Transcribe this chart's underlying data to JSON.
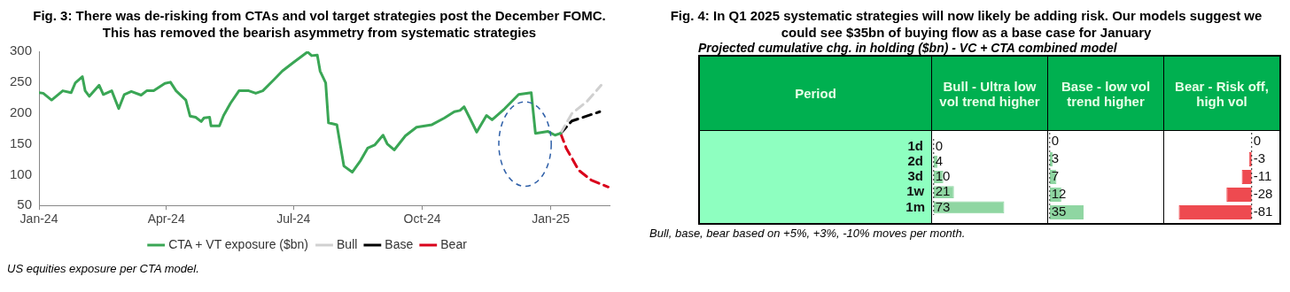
{
  "chart_data": [
    {
      "type": "line",
      "title": "Fig. 3: There was de-risking from CTAs and vol target strategies post the December FOMC. This has removed the bearish asymmetry from systematic strategies",
      "annotations": [
        "US equities exposure per CTA model."
      ],
      "xlim": [
        "2024-01-01",
        "2025-02-12"
      ],
      "xticks": [
        {
          "value": "2024-01-01",
          "label": "Jan-24"
        },
        {
          "value": "2024-04-01",
          "label": "Apr-24"
        },
        {
          "value": "2024-07-01",
          "label": "Jul-24"
        },
        {
          "value": "2024-10-01",
          "label": "Oct-24"
        },
        {
          "value": "2025-01-01",
          "label": "Jan-25"
        }
      ],
      "ylim": [
        50,
        300
      ],
      "yticks": [
        50,
        100,
        150,
        200,
        250,
        300
      ],
      "legend": "bottom",
      "series": [
        {
          "name": "CTA + VT exposure ($bn)",
          "color": "#3aa655",
          "line_style": "solid",
          "x": [
            "2024-01-01",
            "2024-01-04",
            "2024-01-10",
            "2024-01-18",
            "2024-01-24",
            "2024-01-27",
            "2024-02-01",
            "2024-02-03",
            "2024-02-06",
            "2024-02-13",
            "2024-02-16",
            "2024-02-22",
            "2024-02-27",
            "2024-03-02",
            "2024-03-07",
            "2024-03-14",
            "2024-03-18",
            "2024-03-23",
            "2024-03-31",
            "2024-04-04",
            "2024-04-08",
            "2024-04-15",
            "2024-04-18",
            "2024-04-22",
            "2024-04-26",
            "2024-04-28",
            "2024-05-02",
            "2024-05-03",
            "2024-05-09",
            "2024-05-12",
            "2024-05-17",
            "2024-05-23",
            "2024-05-30",
            "2024-06-04",
            "2024-06-09",
            "2024-06-17",
            "2024-06-23",
            "2024-07-01",
            "2024-07-11",
            "2024-07-14",
            "2024-07-18",
            "2024-07-20",
            "2024-07-24",
            "2024-07-26",
            "2024-08-01",
            "2024-08-06",
            "2024-08-12",
            "2024-08-18",
            "2024-08-23",
            "2024-08-28",
            "2024-09-03",
            "2024-09-06",
            "2024-09-11",
            "2024-09-19",
            "2024-09-27",
            "2024-10-08",
            "2024-10-17",
            "2024-10-24",
            "2024-10-28",
            "2024-10-31",
            "2024-11-04",
            "2024-11-09",
            "2024-11-16",
            "2024-11-20",
            "2024-11-29",
            "2024-12-09",
            "2024-12-18",
            "2024-12-21",
            "2024-12-30",
            "2025-01-04",
            "2025-01-08"
          ],
          "values": [
            233,
            232,
            221,
            236,
            233,
            249,
            259,
            236,
            227,
            245,
            230,
            236,
            207,
            230,
            235,
            229,
            236,
            236,
            248,
            250,
            236,
            221,
            195,
            193,
            186,
            192,
            193,
            179,
            179,
            196,
            216,
            236,
            236,
            232,
            236,
            254,
            268,
            282,
            299,
            293,
            294,
            268,
            249,
            184,
            181,
            114,
            104,
            123,
            143,
            148,
            164,
            150,
            140,
            163,
            177,
            181,
            192,
            202,
            204,
            210,
            192,
            169,
            196,
            189,
            207,
            230,
            233,
            167,
            170,
            164,
            167
          ]
        },
        {
          "name": "Bull",
          "color": "#d0d0d0",
          "line_style": "dashed",
          "x": [
            "2025-01-08",
            "2025-01-16",
            "2025-01-27",
            "2025-02-06"
          ],
          "values": [
            167,
            199,
            219,
            245
          ]
        },
        {
          "name": "Base",
          "color": "#000000",
          "line_style": "dashed",
          "x": [
            "2025-01-08",
            "2025-01-16",
            "2025-02-05"
          ],
          "values": [
            167,
            187,
            202
          ]
        },
        {
          "name": "Bear",
          "color": "#d9001b",
          "line_style": "dashed",
          "x": [
            "2025-01-08",
            "2025-01-12",
            "2025-01-21",
            "2025-01-30",
            "2025-02-11"
          ],
          "values": [
            167,
            143,
            107,
            91,
            80
          ]
        }
      ]
    },
    {
      "type": "bar",
      "orientation": "horizontal",
      "title": "Fig. 4: In Q1 2025 systematic strategies will now likely be adding risk. Our models suggest we could see $35bn of buying flow as a base case for January",
      "subtitle": "Projected cumulative chg. in holding ($bn) - VC + CTA combined model",
      "annotations": [
        "Bull, base, bear based on +5%, +3%, -10% moves per month."
      ],
      "ylabel": "Period",
      "categories": [
        "1d",
        "2d",
        "3d",
        "1w",
        "1m"
      ],
      "data_labels": true,
      "tick_labels": "y",
      "ref_lines": [
        {
          "axis": "x",
          "value": 0,
          "color": "#222222",
          "line_style": "dotted"
        }
      ],
      "series": [
        {
          "name": "Bull - Ultra low vol trend higher",
          "color": "#8fd6a2",
          "values": [
            0,
            4,
            10,
            21,
            73
          ]
        }
      ]
    },
    {
      "type": "bar",
      "orientation": "horizontal",
      "categories": [
        null,
        null,
        null,
        null,
        null
      ],
      "data_labels": true,
      "tick_labels": false,
      "ref_lines": [
        {
          "axis": "x",
          "value": 0,
          "color": "#222222",
          "line_style": "dotted"
        }
      ],
      "series": [
        {
          "name": "Base - low vol trend higher",
          "color": "#8fd6a2",
          "values": [
            0,
            3,
            7,
            12,
            35
          ]
        }
      ]
    },
    {
      "type": "bar",
      "orientation": "horizontal",
      "categories": [
        null,
        null,
        null,
        null,
        null
      ],
      "data_labels": true,
      "tick_labels": false,
      "ref_lines": [
        {
          "axis": "x",
          "value": 0,
          "color": "#222222",
          "line_style": "dotted"
        }
      ],
      "series": [
        {
          "name": "Bear - Risk off, high vol",
          "color": "#ee4a50",
          "values": [
            0,
            -3,
            -11,
            -28,
            -81
          ]
        }
      ]
    }
  ]
}
